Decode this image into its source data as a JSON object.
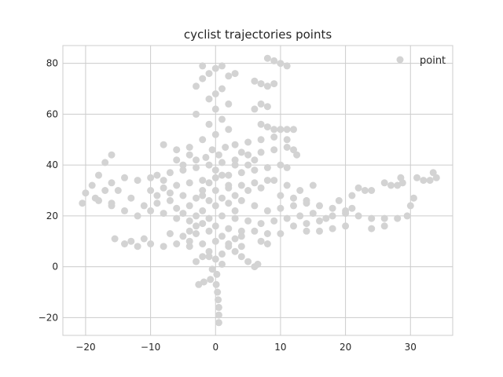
{
  "chart_data": {
    "type": "scatter",
    "title": "cyclist trajectories points",
    "xlabel": "",
    "ylabel": "",
    "xlim": [
      -23.5,
      36.5
    ],
    "ylim": [
      -27,
      87
    ],
    "xticks": [
      -20,
      -10,
      0,
      10,
      20,
      30
    ],
    "yticks": [
      -20,
      0,
      20,
      40,
      60,
      80
    ],
    "xtick_labels": [
      "−20",
      "−10",
      "0",
      "10",
      "20",
      "30"
    ],
    "ytick_labels": [
      "−20",
      "0",
      "20",
      "40",
      "60",
      "80"
    ],
    "grid": true,
    "legend": {
      "position": "top-right",
      "entries": [
        "point"
      ]
    },
    "series": [
      {
        "name": "point",
        "color": "#d3d3d3",
        "points": [
          [
            0.5,
            -22
          ],
          [
            0.5,
            -19
          ],
          [
            0.5,
            -16
          ],
          [
            0.4,
            -13
          ],
          [
            0.3,
            -10
          ],
          [
            0.1,
            -7
          ],
          [
            -0.8,
            -5
          ],
          [
            -1.8,
            -6
          ],
          [
            -2.6,
            -7
          ],
          [
            -3,
            2
          ],
          [
            -2,
            4
          ],
          [
            -1,
            6
          ],
          [
            0,
            3
          ],
          [
            1,
            5
          ],
          [
            2,
            8
          ],
          [
            3,
            6
          ],
          [
            4,
            4
          ],
          [
            5,
            2
          ],
          [
            6,
            0
          ],
          [
            6.5,
            1
          ],
          [
            -4,
            10
          ],
          [
            -6,
            9
          ],
          [
            -8,
            8
          ],
          [
            -10,
            9
          ],
          [
            -12,
            8
          ],
          [
            -14,
            9
          ],
          [
            -15.5,
            11
          ],
          [
            -13,
            10
          ],
          [
            -11,
            11
          ],
          [
            -16,
            25
          ],
          [
            -17,
            30
          ],
          [
            -18,
            36
          ],
          [
            -17,
            41
          ],
          [
            -16,
            44
          ],
          [
            -19,
            32
          ],
          [
            -20,
            29
          ],
          [
            -20.5,
            25
          ],
          [
            -18.5,
            27
          ],
          [
            -12,
            20
          ],
          [
            -10,
            22
          ],
          [
            -8,
            21
          ],
          [
            -6,
            19
          ],
          [
            -4,
            18
          ],
          [
            -2,
            17
          ],
          [
            0,
            16
          ],
          [
            2,
            15
          ],
          [
            4,
            14
          ],
          [
            6,
            14
          ],
          [
            8,
            13
          ],
          [
            10,
            13
          ],
          [
            12,
            16
          ],
          [
            14,
            17
          ],
          [
            16,
            18
          ],
          [
            18,
            20
          ],
          [
            20,
            21
          ],
          [
            22,
            20
          ],
          [
            24,
            19
          ],
          [
            26,
            19
          ],
          [
            28,
            19
          ],
          [
            29.5,
            20
          ],
          [
            30,
            24
          ],
          [
            30.5,
            27
          ],
          [
            -10,
            30
          ],
          [
            -8,
            31
          ],
          [
            -6,
            32
          ],
          [
            -4,
            33
          ],
          [
            -2,
            34
          ],
          [
            0,
            35
          ],
          [
            2,
            36
          ],
          [
            4,
            37
          ],
          [
            6,
            38
          ],
          [
            8,
            39
          ],
          [
            10,
            40
          ],
          [
            11,
            39
          ],
          [
            -9,
            36
          ],
          [
            -7,
            37
          ],
          [
            -5,
            38
          ],
          [
            -3,
            39
          ],
          [
            -1,
            40
          ],
          [
            1,
            41
          ],
          [
            3,
            42
          ],
          [
            -6,
            46
          ],
          [
            -8,
            48
          ],
          [
            -4,
            47
          ],
          [
            -2,
            50
          ],
          [
            0,
            52
          ],
          [
            2,
            54
          ],
          [
            -1,
            56
          ],
          [
            1,
            58
          ],
          [
            -3,
            60
          ],
          [
            0,
            62
          ],
          [
            2,
            64
          ],
          [
            -1,
            66
          ],
          [
            0,
            68
          ],
          [
            1,
            70
          ],
          [
            -3,
            71
          ],
          [
            -2,
            74
          ],
          [
            -1,
            76
          ],
          [
            0,
            78
          ],
          [
            1,
            79
          ],
          [
            2,
            75
          ],
          [
            -2,
            79
          ],
          [
            3,
            76
          ],
          [
            7,
            56
          ],
          [
            8,
            55
          ],
          [
            9,
            54
          ],
          [
            10,
            54
          ],
          [
            11,
            54
          ],
          [
            12,
            54
          ],
          [
            6,
            62
          ],
          [
            7,
            64
          ],
          [
            8,
            63
          ],
          [
            6,
            73
          ],
          [
            7,
            72
          ],
          [
            8,
            71
          ],
          [
            9,
            72
          ],
          [
            8,
            82
          ],
          [
            9,
            81
          ],
          [
            10,
            80
          ],
          [
            11,
            79
          ],
          [
            5,
            44
          ],
          [
            7,
            45
          ],
          [
            9,
            46
          ],
          [
            11,
            47
          ],
          [
            12,
            46
          ],
          [
            3,
            48
          ],
          [
            5,
            49
          ],
          [
            7,
            50
          ],
          [
            9,
            51
          ],
          [
            11,
            50
          ],
          [
            12.5,
            44
          ],
          [
            -1,
            14
          ],
          [
            1,
            12
          ],
          [
            3,
            11
          ],
          [
            -3,
            13
          ],
          [
            -5,
            12
          ],
          [
            -7,
            13
          ],
          [
            -2,
            22
          ],
          [
            0,
            24
          ],
          [
            2,
            25
          ],
          [
            4,
            26
          ],
          [
            6,
            24
          ],
          [
            8,
            22
          ],
          [
            10,
            23
          ],
          [
            12,
            24
          ],
          [
            14,
            25
          ],
          [
            16,
            24
          ],
          [
            18,
            23
          ],
          [
            20,
            22
          ],
          [
            21,
            23
          ],
          [
            -14,
            22
          ],
          [
            -16,
            24
          ],
          [
            -18,
            26
          ],
          [
            14,
            14
          ],
          [
            16,
            14
          ],
          [
            18,
            15
          ],
          [
            20,
            16
          ],
          [
            24,
            15
          ],
          [
            26,
            16
          ],
          [
            19,
            26
          ],
          [
            21,
            28
          ],
          [
            22,
            31
          ],
          [
            23,
            30
          ],
          [
            24,
            30
          ],
          [
            26,
            33
          ],
          [
            27,
            32
          ],
          [
            28,
            32
          ],
          [
            28.8,
            33
          ],
          [
            31,
            35
          ],
          [
            32,
            34
          ],
          [
            33,
            34
          ],
          [
            34,
            35
          ],
          [
            33.5,
            37
          ],
          [
            28.5,
            35
          ],
          [
            15,
            32
          ],
          [
            13,
            30
          ],
          [
            11,
            32
          ],
          [
            9,
            34
          ],
          [
            7,
            31
          ],
          [
            5,
            30
          ],
          [
            3,
            28
          ],
          [
            1,
            27
          ],
          [
            -1,
            26
          ],
          [
            -3,
            27
          ],
          [
            -5,
            28
          ],
          [
            -7,
            26
          ],
          [
            -9,
            25
          ],
          [
            -11,
            24
          ],
          [
            -13,
            27
          ],
          [
            -15,
            30
          ],
          [
            -16,
            33
          ],
          [
            -14,
            35
          ],
          [
            -12,
            34
          ],
          [
            -10,
            35
          ],
          [
            -8,
            34
          ],
          [
            -6,
            23
          ],
          [
            -4,
            24
          ],
          [
            -2,
            28
          ],
          [
            0,
            30
          ],
          [
            2,
            31
          ],
          [
            4,
            32
          ],
          [
            6,
            33
          ],
          [
            8,
            34
          ],
          [
            10,
            28
          ],
          [
            12,
            27
          ],
          [
            14,
            26
          ],
          [
            1,
            20
          ],
          [
            3,
            19
          ],
          [
            5,
            18
          ],
          [
            7,
            17
          ],
          [
            9,
            18
          ],
          [
            11,
            19
          ],
          [
            13,
            20
          ],
          [
            15,
            21
          ],
          [
            17,
            19
          ],
          [
            -1,
            19
          ],
          [
            -3,
            20
          ],
          [
            -5,
            21
          ],
          [
            0,
            10
          ],
          [
            2,
            9
          ],
          [
            4,
            8
          ],
          [
            -2,
            9
          ],
          [
            -4,
            8
          ],
          [
            -1,
            4
          ],
          [
            1,
            1
          ],
          [
            -0.5,
            -1
          ],
          [
            0.2,
            -3
          ],
          [
            -9,
            28
          ],
          [
            -7,
            29
          ],
          [
            0.5,
            44
          ],
          [
            -0.5,
            46
          ],
          [
            1.5,
            47
          ],
          [
            -1.5,
            43
          ],
          [
            0,
            38
          ],
          [
            1,
            36
          ],
          [
            -1,
            33
          ],
          [
            2,
            32
          ],
          [
            -2,
            30
          ],
          [
            3,
            40
          ],
          [
            -3,
            42
          ],
          [
            4,
            45
          ],
          [
            -4,
            44
          ],
          [
            5,
            40
          ],
          [
            -5,
            40
          ],
          [
            6,
            42
          ],
          [
            -6,
            42
          ],
          [
            3,
            22
          ],
          [
            -3,
            16
          ],
          [
            4,
            12
          ],
          [
            -4,
            14
          ],
          [
            7,
            10
          ],
          [
            8,
            9
          ]
        ]
      }
    ]
  }
}
